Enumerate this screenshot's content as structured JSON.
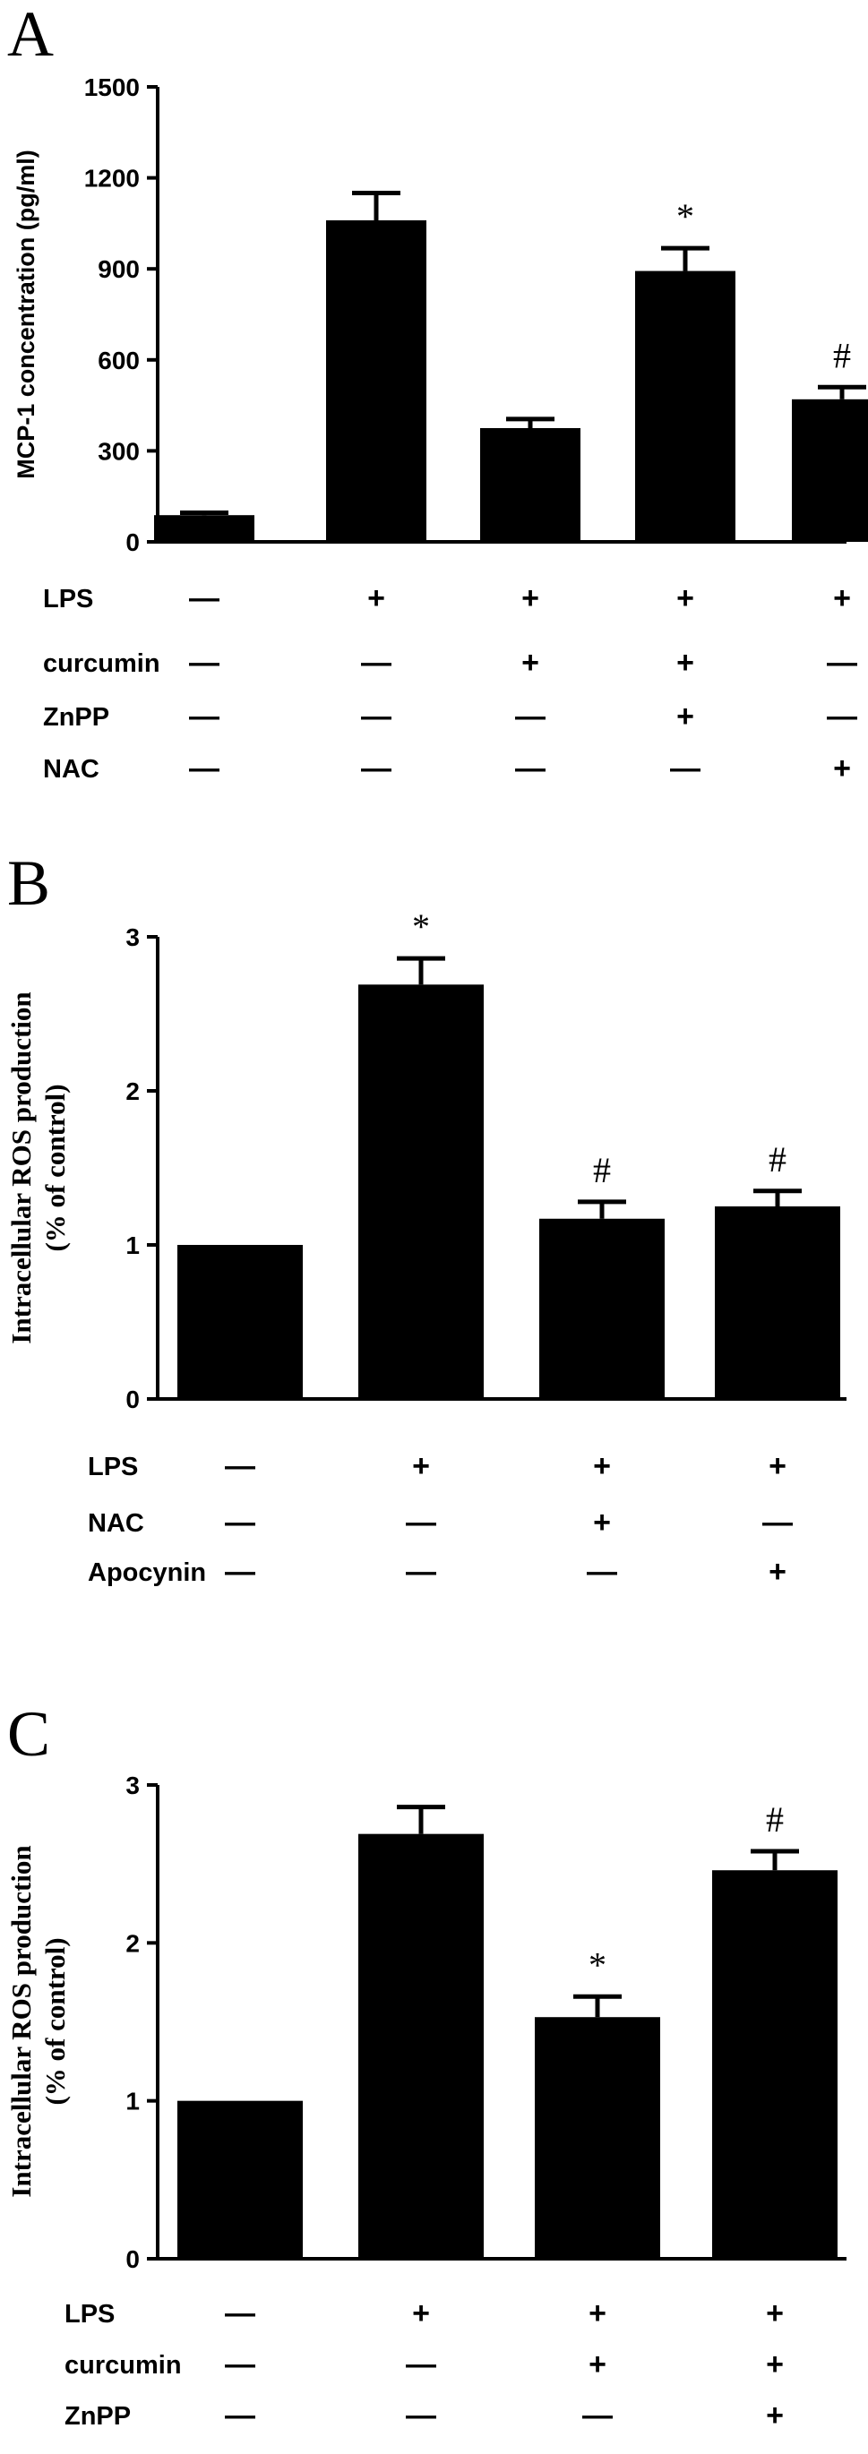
{
  "chart_data": [
    {
      "panel": "A",
      "type": "bar",
      "title": "",
      "xlabel": "",
      "ylabel": "MCP-1 concentration (pg/ml)",
      "ylim": [
        0,
        1500
      ],
      "yticks": [
        "0",
        "300",
        "600",
        "900",
        "1200",
        "1500"
      ],
      "grid": false,
      "values": [
        88,
        1060,
        375,
        893,
        470
      ],
      "errors": [
        8,
        90,
        30,
        75,
        40
      ],
      "annotations": [
        "",
        "",
        "",
        "*",
        "#"
      ],
      "conditions": [
        {
          "label": "LPS",
          "signs": [
            "—",
            "+",
            "+",
            "+",
            "+"
          ]
        },
        {
          "label": "curcumin",
          "signs": [
            "—",
            "—",
            "+",
            "+",
            "—"
          ]
        },
        {
          "label": "ZnPP",
          "signs": [
            "—",
            "—",
            "—",
            "+",
            "—"
          ]
        },
        {
          "label": "NAC",
          "signs": [
            "—",
            "—",
            "—",
            "—",
            "+"
          ]
        }
      ]
    },
    {
      "panel": "B",
      "type": "bar",
      "title": "",
      "xlabel": "",
      "ylabel": "Intracellular ROS production\n(% of control)",
      "ylim": [
        0,
        3
      ],
      "yticks": [
        "0",
        "1",
        "2",
        "3"
      ],
      "grid": false,
      "values": [
        1.0,
        2.69,
        1.17,
        1.25
      ],
      "errors": [
        0,
        0.17,
        0.11,
        0.1
      ],
      "annotations": [
        "",
        "*",
        "#",
        "#"
      ],
      "conditions": [
        {
          "label": "LPS",
          "signs": [
            "—",
            "+",
            "+",
            "+"
          ]
        },
        {
          "label": "NAC",
          "signs": [
            "—",
            "—",
            "+",
            "—"
          ]
        },
        {
          "label": "Apocynin",
          "signs": [
            "—",
            "—",
            "—",
            "+"
          ]
        }
      ]
    },
    {
      "panel": "C",
      "type": "bar",
      "title": "",
      "xlabel": "",
      "ylabel": "Intracellular ROS production\n(% of control)",
      "ylim": [
        0,
        3
      ],
      "yticks": [
        "0",
        "1",
        "2",
        "3"
      ],
      "grid": false,
      "values": [
        1.0,
        2.69,
        1.53,
        2.46
      ],
      "errors": [
        0,
        0.17,
        0.13,
        0.12
      ],
      "annotations": [
        "",
        "",
        "*",
        "#"
      ],
      "conditions": [
        {
          "label": "LPS",
          "signs": [
            "—",
            "+",
            "+",
            "+"
          ]
        },
        {
          "label": "curcumin",
          "signs": [
            "—",
            "—",
            "+",
            "+"
          ]
        },
        {
          "label": "ZnPP",
          "signs": [
            "—",
            "—",
            "—",
            "+"
          ]
        }
      ]
    }
  ]
}
